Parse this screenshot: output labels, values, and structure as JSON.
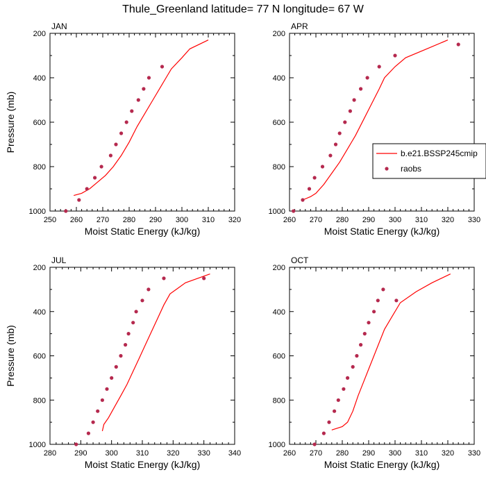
{
  "title": "Thule_Greenland  latitude= 77 N longitude= 67 W",
  "legend": {
    "line_label": "b.e21.BSSP245cmip",
    "dots_label": "raobs"
  },
  "colors": {
    "model_line": "#ff0000",
    "obs_dots": "#b5294e",
    "axes": "#000000"
  },
  "chart_data": [
    {
      "type": "line",
      "panel": "JAN",
      "title": "JAN",
      "xlabel": "Moist Static Energy (kJ/kg)",
      "ylabel": "Pressure (mb)",
      "xlim": [
        250,
        320
      ],
      "ylim": [
        1000,
        200
      ],
      "xticks": [
        250,
        260,
        270,
        280,
        290,
        300,
        310,
        320
      ],
      "yticks": [
        200,
        400,
        600,
        800,
        1000
      ],
      "series": [
        {
          "name": "b.e21.BSSP245cmip",
          "style": "line",
          "x": [
            259,
            262,
            265,
            268,
            271,
            274,
            277,
            280,
            283,
            286,
            289,
            292,
            294,
            296,
            300,
            303,
            310
          ],
          "y": [
            930,
            920,
            900,
            870,
            840,
            800,
            750,
            690,
            620,
            560,
            500,
            440,
            400,
            360,
            310,
            270,
            230
          ]
        },
        {
          "name": "raobs",
          "style": "markers",
          "x": [
            256,
            261,
            264,
            267,
            269.5,
            273,
            275,
            277,
            279,
            281,
            283.5,
            285.5,
            287.5,
            292.5
          ],
          "y": [
            1000,
            950,
            900,
            850,
            800,
            750,
            700,
            650,
            600,
            550,
            500,
            450,
            400,
            350
          ]
        }
      ]
    },
    {
      "type": "line",
      "panel": "APR",
      "title": "APR",
      "xlabel": "Moist Static Energy (kJ/kg)",
      "ylabel": "Pressure (mb)",
      "xlim": [
        260,
        330
      ],
      "ylim": [
        1000,
        200
      ],
      "xticks": [
        260,
        270,
        280,
        290,
        300,
        310,
        320,
        330
      ],
      "yticks": [
        200,
        400,
        600,
        800,
        1000
      ],
      "legend_position": "right",
      "series": [
        {
          "name": "b.e21.BSSP245cmip",
          "style": "line",
          "x": [
            265,
            268,
            270,
            273,
            276,
            279,
            282,
            285,
            288,
            291,
            294,
            296,
            300,
            304,
            312,
            320
          ],
          "y": [
            950,
            935,
            920,
            880,
            830,
            780,
            720,
            660,
            590,
            520,
            450,
            400,
            350,
            310,
            270,
            230
          ]
        },
        {
          "name": "raobs",
          "style": "markers",
          "x": [
            261.5,
            265,
            267.5,
            269.5,
            272.5,
            275.5,
            277.5,
            279,
            281,
            283,
            284.5,
            287,
            289.5,
            294,
            300,
            324
          ],
          "y": [
            1000,
            950,
            900,
            850,
            800,
            750,
            700,
            650,
            600,
            550,
            500,
            450,
            400,
            350,
            300,
            250
          ]
        }
      ]
    },
    {
      "type": "line",
      "panel": "JUL",
      "title": "JUL",
      "xlabel": "Moist Static Energy (kJ/kg)",
      "ylabel": "Pressure (mb)",
      "xlim": [
        280,
        340
      ],
      "ylim": [
        1000,
        200
      ],
      "xticks": [
        280,
        290,
        300,
        310,
        320,
        330,
        340
      ],
      "yticks": [
        200,
        400,
        600,
        800,
        1000
      ],
      "series": [
        {
          "name": "b.e21.BSSP245cmip",
          "style": "line",
          "x": [
            297,
            297.5,
            299,
            301,
            303,
            305,
            307,
            309,
            311,
            313,
            315,
            317,
            319,
            324,
            332
          ],
          "y": [
            940,
            910,
            880,
            830,
            780,
            730,
            670,
            610,
            550,
            490,
            430,
            370,
            320,
            270,
            230
          ]
        },
        {
          "name": "raobs",
          "style": "markers",
          "x": [
            288.5,
            292.5,
            294,
            295.5,
            297,
            298.5,
            300,
            301.5,
            303,
            304.5,
            305.5,
            307,
            308,
            310,
            312,
            317,
            330
          ],
          "y": [
            1000,
            950,
            900,
            850,
            800,
            750,
            700,
            650,
            600,
            550,
            500,
            450,
            400,
            350,
            300,
            250,
            250
          ]
        }
      ]
    },
    {
      "type": "line",
      "panel": "OCT",
      "title": "OCT",
      "xlabel": "Moist Static Energy (kJ/kg)",
      "ylabel": "Pressure (mb)",
      "xlim": [
        260,
        330
      ],
      "ylim": [
        1000,
        200
      ],
      "xticks": [
        260,
        270,
        280,
        290,
        300,
        310,
        320,
        330
      ],
      "yticks": [
        200,
        400,
        600,
        800,
        1000
      ],
      "series": [
        {
          "name": "b.e21.BSSP245cmip",
          "style": "line",
          "x": [
            276,
            280,
            282,
            284,
            286,
            288,
            290,
            292,
            294,
            296,
            299,
            302,
            308,
            314,
            321
          ],
          "y": [
            935,
            920,
            900,
            850,
            780,
            720,
            660,
            600,
            540,
            480,
            420,
            360,
            310,
            270,
            230
          ]
        },
        {
          "name": "raobs",
          "style": "markers",
          "x": [
            269.5,
            273,
            275,
            277,
            278.5,
            280.5,
            282,
            284,
            285.5,
            287,
            288.5,
            290,
            292,
            293.5,
            295.5,
            300.5
          ],
          "y": [
            1000,
            950,
            900,
            850,
            800,
            750,
            700,
            650,
            600,
            550,
            500,
            450,
            400,
            350,
            300,
            350
          ]
        }
      ]
    }
  ]
}
